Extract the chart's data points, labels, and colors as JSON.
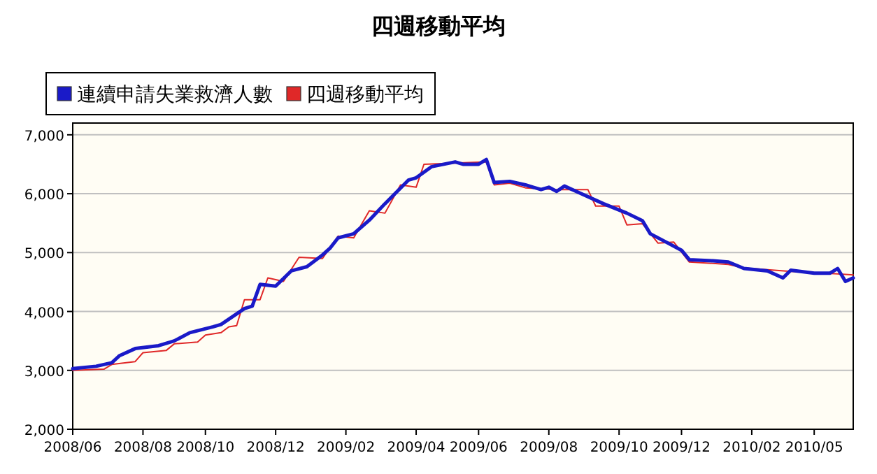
{
  "chart_data": {
    "type": "line",
    "title": "四週移動平均",
    "legend": "top left",
    "grid": "y",
    "xlim": [
      "2008-06-07",
      "2010-05-08"
    ],
    "ylim": [
      2000,
      7200
    ],
    "xticks": [
      {
        "value": "2008-06-07",
        "label": "2008/06"
      },
      {
        "value": "2008-08-09",
        "label": "2008/08"
      },
      {
        "value": "2008-10-04",
        "label": "2008/10"
      },
      {
        "value": "2008-12-06",
        "label": "2008/12"
      },
      {
        "value": "2009-02-07",
        "label": "2009/02"
      },
      {
        "value": "2009-04-11",
        "label": "2009/04"
      },
      {
        "value": "2009-06-06",
        "label": "2009/06"
      },
      {
        "value": "2009-08-08",
        "label": "2009/08"
      },
      {
        "value": "2009-10-10",
        "label": "2009/10"
      },
      {
        "value": "2009-12-05",
        "label": "2009/12"
      },
      {
        "value": "2010-02-06",
        "label": "2010/02"
      },
      {
        "value": "2010-04-03",
        "label": "2010/05"
      }
    ],
    "yticks": [
      {
        "value": 2000,
        "label": "2,000"
      },
      {
        "value": 3000,
        "label": "3,000"
      },
      {
        "value": 4000,
        "label": "4,000"
      },
      {
        "value": 5000,
        "label": "5,000"
      },
      {
        "value": 6000,
        "label": "6,000"
      },
      {
        "value": 7000,
        "label": "7,000"
      }
    ],
    "series": [
      {
        "name": "連續申請失業救濟人數",
        "color": "#1a1ac8",
        "x": [
          "2008-06-07",
          "2008-06-28",
          "2008-07-12",
          "2008-07-19",
          "2008-08-02",
          "2008-08-23",
          "2008-09-06",
          "2008-09-20",
          "2008-10-11",
          "2008-10-18",
          "2008-11-08",
          "2008-11-15",
          "2008-11-22",
          "2008-12-06",
          "2008-12-20",
          "2009-01-03",
          "2009-01-17",
          "2009-01-24",
          "2009-01-31",
          "2009-02-14",
          "2009-02-28",
          "2009-03-14",
          "2009-04-04",
          "2009-04-11",
          "2009-04-25",
          "2009-05-16",
          "2009-05-23",
          "2009-06-06",
          "2009-06-13",
          "2009-06-20",
          "2009-07-04",
          "2009-07-18",
          "2009-07-25",
          "2009-08-01",
          "2009-08-08",
          "2009-08-15",
          "2009-08-22",
          "2009-09-05",
          "2009-09-26",
          "2009-10-17",
          "2009-10-31",
          "2009-11-07",
          "2009-11-21",
          "2009-12-05",
          "2009-12-12",
          "2010-01-02",
          "2010-01-16",
          "2010-01-30",
          "2010-02-20",
          "2010-03-06",
          "2010-03-13",
          "2010-04-03",
          "2010-04-17",
          "2010-04-24",
          "2010-05-01",
          "2010-05-08"
        ],
        "values": [
          3030,
          3070,
          3130,
          3250,
          3370,
          3420,
          3500,
          3640,
          3740,
          3780,
          4050,
          4090,
          4460,
          4430,
          4690,
          4760,
          4960,
          5080,
          5250,
          5320,
          5550,
          5830,
          6230,
          6270,
          6460,
          6540,
          6500,
          6500,
          6580,
          6190,
          6210,
          6150,
          6110,
          6070,
          6110,
          6040,
          6130,
          6010,
          5830,
          5670,
          5540,
          5320,
          5180,
          5040,
          4880,
          4860,
          4840,
          4730,
          4690,
          4570,
          4700,
          4650,
          4650,
          4730,
          4510,
          4570
        ]
      },
      {
        "name": "四週移動平均",
        "color": "#e02828",
        "x": [
          "2008-06-07",
          "2008-07-05",
          "2008-07-12",
          "2008-08-02",
          "2008-08-09",
          "2008-08-30",
          "2008-09-06",
          "2008-09-27",
          "2008-10-04",
          "2008-10-18",
          "2008-10-25",
          "2008-11-01",
          "2008-11-08",
          "2008-11-22",
          "2008-11-29",
          "2008-12-13",
          "2008-12-27",
          "2009-01-17",
          "2009-01-31",
          "2009-02-14",
          "2009-02-28",
          "2009-03-14",
          "2009-03-28",
          "2009-04-11",
          "2009-04-18",
          "2009-06-13",
          "2009-06-20",
          "2009-07-04",
          "2009-07-18",
          "2009-08-15",
          "2009-09-12",
          "2009-09-19",
          "2009-10-10",
          "2009-10-17",
          "2009-10-31",
          "2009-11-14",
          "2009-11-28",
          "2009-12-12",
          "2010-01-16",
          "2010-01-30",
          "2010-03-13",
          "2010-04-24",
          "2010-05-08"
        ],
        "values": [
          3000,
          3020,
          3100,
          3150,
          3300,
          3340,
          3450,
          3480,
          3600,
          3640,
          3740,
          3760,
          4200,
          4200,
          4570,
          4510,
          4920,
          4900,
          5280,
          5250,
          5710,
          5670,
          6150,
          6110,
          6500,
          6540,
          6150,
          6180,
          6100,
          6070,
          6070,
          5790,
          5790,
          5470,
          5490,
          5160,
          5180,
          4840,
          4800,
          4740,
          4680,
          4640,
          4620
        ]
      }
    ]
  }
}
